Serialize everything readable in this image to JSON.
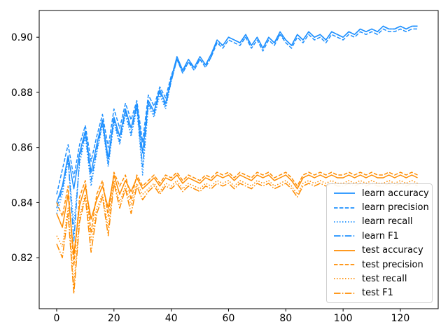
{
  "chart_data": {
    "type": "line",
    "title": "",
    "xlabel": "",
    "ylabel": "",
    "xlim": [
      -6.1,
      133.2
    ],
    "ylim": [
      0.8015,
      0.9097
    ],
    "xticks": [
      0,
      20,
      40,
      60,
      80,
      100,
      120
    ],
    "xtick_labels": [
      "0",
      "20",
      "40",
      "60",
      "80",
      "100",
      "120"
    ],
    "yticks": [
      0.82,
      0.84,
      0.86,
      0.88,
      0.9
    ],
    "ytick_labels": [
      "0.82",
      "0.84",
      "0.86",
      "0.88",
      "0.90"
    ],
    "grid": false,
    "legend": {
      "position": "lower right"
    },
    "x": [
      0,
      2,
      4,
      6,
      8,
      10,
      12,
      14,
      16,
      18,
      20,
      22,
      24,
      26,
      28,
      30,
      32,
      34,
      36,
      38,
      40,
      42,
      44,
      46,
      48,
      50,
      52,
      54,
      56,
      58,
      60,
      62,
      64,
      66,
      68,
      70,
      72,
      74,
      76,
      78,
      80,
      82,
      84,
      86,
      88,
      90,
      92,
      94,
      96,
      98,
      100,
      102,
      104,
      106,
      108,
      110,
      112,
      114,
      116,
      118,
      120,
      122,
      124,
      126
    ],
    "series": [
      {
        "name": "learn accuracy",
        "color": "#1e90ff",
        "linestyle": "solid",
        "values": [
          0.84,
          0.846,
          0.857,
          0.845,
          0.858,
          0.866,
          0.851,
          0.861,
          0.87,
          0.856,
          0.871,
          0.864,
          0.874,
          0.867,
          0.876,
          0.858,
          0.877,
          0.873,
          0.881,
          0.876,
          0.885,
          0.893,
          0.888,
          0.892,
          0.889,
          0.893,
          0.89,
          0.894,
          0.899,
          0.897,
          0.9,
          0.899,
          0.898,
          0.901,
          0.897,
          0.9,
          0.896,
          0.9,
          0.898,
          0.902,
          0.899,
          0.897,
          0.901,
          0.899,
          0.902,
          0.9,
          0.901,
          0.899,
          0.902,
          0.901,
          0.9,
          0.902,
          0.901,
          0.903,
          0.902,
          0.903,
          0.902,
          0.904,
          0.903,
          0.903,
          0.904,
          0.903,
          0.904,
          0.904
        ]
      },
      {
        "name": "learn precision",
        "color": "#1e90ff",
        "linestyle": "dashed",
        "values": [
          0.843,
          0.852,
          0.861,
          0.849,
          0.861,
          0.868,
          0.855,
          0.864,
          0.872,
          0.86,
          0.874,
          0.867,
          0.876,
          0.87,
          0.877,
          0.862,
          0.879,
          0.875,
          0.882,
          0.878,
          0.886,
          0.892,
          0.887,
          0.891,
          0.888,
          0.892,
          0.889,
          0.893,
          0.898,
          0.896,
          0.899,
          0.898,
          0.897,
          0.9,
          0.896,
          0.899,
          0.895,
          0.899,
          0.897,
          0.901,
          0.898,
          0.896,
          0.9,
          0.898,
          0.901,
          0.899,
          0.9,
          0.898,
          0.901,
          0.9,
          0.899,
          0.901,
          0.9,
          0.902,
          0.901,
          0.902,
          0.901,
          0.903,
          0.902,
          0.902,
          0.903,
          0.902,
          0.903,
          0.903
        ]
      },
      {
        "name": "learn recall",
        "color": "#1e90ff",
        "linestyle": "dotted",
        "values": [
          0.836,
          0.843,
          0.855,
          0.832,
          0.854,
          0.864,
          0.846,
          0.858,
          0.868,
          0.853,
          0.869,
          0.861,
          0.872,
          0.864,
          0.874,
          0.85,
          0.875,
          0.871,
          0.879,
          0.874,
          0.884,
          0.892,
          0.887,
          0.891,
          0.888,
          0.892,
          0.889,
          0.893,
          0.898,
          0.897,
          0.9,
          0.899,
          0.898,
          0.9,
          0.897,
          0.9,
          0.896,
          0.9,
          0.898,
          0.901,
          0.899,
          0.897,
          0.901,
          0.899,
          0.902,
          0.9,
          0.901,
          0.899,
          0.902,
          0.901,
          0.9,
          0.902,
          0.901,
          0.903,
          0.902,
          0.903,
          0.902,
          0.904,
          0.903,
          0.903,
          0.904,
          0.903,
          0.904,
          0.904
        ]
      },
      {
        "name": "learn F1",
        "color": "#1e90ff",
        "linestyle": "dashdot",
        "values": [
          0.838,
          0.845,
          0.856,
          0.826,
          0.856,
          0.865,
          0.848,
          0.859,
          0.869,
          0.854,
          0.87,
          0.862,
          0.873,
          0.865,
          0.875,
          0.853,
          0.876,
          0.872,
          0.88,
          0.875,
          0.884,
          0.892,
          0.888,
          0.891,
          0.889,
          0.892,
          0.89,
          0.893,
          0.899,
          0.897,
          0.9,
          0.899,
          0.898,
          0.901,
          0.897,
          0.9,
          0.896,
          0.9,
          0.898,
          0.901,
          0.899,
          0.897,
          0.901,
          0.899,
          0.902,
          0.9,
          0.901,
          0.899,
          0.902,
          0.901,
          0.9,
          0.902,
          0.901,
          0.903,
          0.902,
          0.903,
          0.902,
          0.904,
          0.903,
          0.903,
          0.904,
          0.903,
          0.904,
          0.904
        ]
      },
      {
        "name": "test accuracy",
        "color": "#ff8c00",
        "linestyle": "solid",
        "values": [
          0.836,
          0.831,
          0.843,
          0.821,
          0.839,
          0.846,
          0.834,
          0.841,
          0.846,
          0.838,
          0.85,
          0.843,
          0.848,
          0.844,
          0.849,
          0.845,
          0.847,
          0.849,
          0.846,
          0.849,
          0.848,
          0.85,
          0.847,
          0.849,
          0.848,
          0.847,
          0.849,
          0.848,
          0.85,
          0.849,
          0.85,
          0.848,
          0.85,
          0.849,
          0.848,
          0.85,
          0.849,
          0.85,
          0.848,
          0.849,
          0.85,
          0.848,
          0.845,
          0.849,
          0.85,
          0.849,
          0.85,
          0.849,
          0.85,
          0.849,
          0.849,
          0.85,
          0.849,
          0.85,
          0.849,
          0.85,
          0.849,
          0.849,
          0.85,
          0.849,
          0.85,
          0.849,
          0.85,
          0.849
        ]
      },
      {
        "name": "test precision",
        "color": "#ff8c00",
        "linestyle": "dashed",
        "values": [
          0.84,
          0.835,
          0.846,
          0.817,
          0.842,
          0.848,
          0.829,
          0.843,
          0.848,
          0.835,
          0.851,
          0.846,
          0.85,
          0.841,
          0.85,
          0.846,
          0.848,
          0.85,
          0.847,
          0.85,
          0.849,
          0.851,
          0.848,
          0.85,
          0.849,
          0.848,
          0.85,
          0.849,
          0.851,
          0.85,
          0.851,
          0.849,
          0.851,
          0.85,
          0.849,
          0.851,
          0.85,
          0.851,
          0.849,
          0.85,
          0.851,
          0.849,
          0.846,
          0.85,
          0.851,
          0.85,
          0.851,
          0.85,
          0.851,
          0.85,
          0.85,
          0.851,
          0.85,
          0.851,
          0.85,
          0.851,
          0.85,
          0.85,
          0.851,
          0.85,
          0.851,
          0.85,
          0.851,
          0.85
        ]
      },
      {
        "name": "test recall",
        "color": "#ff8c00",
        "linestyle": "dotted",
        "values": [
          0.828,
          0.824,
          0.838,
          0.81,
          0.835,
          0.843,
          0.826,
          0.838,
          0.843,
          0.831,
          0.848,
          0.84,
          0.846,
          0.839,
          0.847,
          0.843,
          0.845,
          0.847,
          0.844,
          0.847,
          0.846,
          0.848,
          0.845,
          0.847,
          0.846,
          0.845,
          0.847,
          0.846,
          0.848,
          0.847,
          0.848,
          0.846,
          0.848,
          0.847,
          0.846,
          0.848,
          0.847,
          0.848,
          0.846,
          0.847,
          0.848,
          0.846,
          0.843,
          0.847,
          0.848,
          0.847,
          0.848,
          0.847,
          0.848,
          0.847,
          0.847,
          0.848,
          0.847,
          0.848,
          0.847,
          0.848,
          0.847,
          0.847,
          0.848,
          0.847,
          0.848,
          0.847,
          0.848,
          0.847
        ]
      },
      {
        "name": "test F1",
        "color": "#ff8c00",
        "linestyle": "dashdot",
        "values": [
          0.825,
          0.82,
          0.836,
          0.807,
          0.833,
          0.842,
          0.822,
          0.836,
          0.842,
          0.828,
          0.847,
          0.838,
          0.845,
          0.836,
          0.846,
          0.841,
          0.844,
          0.846,
          0.843,
          0.846,
          0.845,
          0.847,
          0.844,
          0.846,
          0.845,
          0.844,
          0.846,
          0.845,
          0.847,
          0.846,
          0.847,
          0.845,
          0.847,
          0.846,
          0.845,
          0.847,
          0.846,
          0.847,
          0.845,
          0.846,
          0.847,
          0.845,
          0.842,
          0.846,
          0.847,
          0.846,
          0.847,
          0.846,
          0.847,
          0.846,
          0.846,
          0.847,
          0.846,
          0.847,
          0.846,
          0.847,
          0.846,
          0.846,
          0.847,
          0.846,
          0.847,
          0.846,
          0.847,
          0.846
        ]
      }
    ]
  }
}
